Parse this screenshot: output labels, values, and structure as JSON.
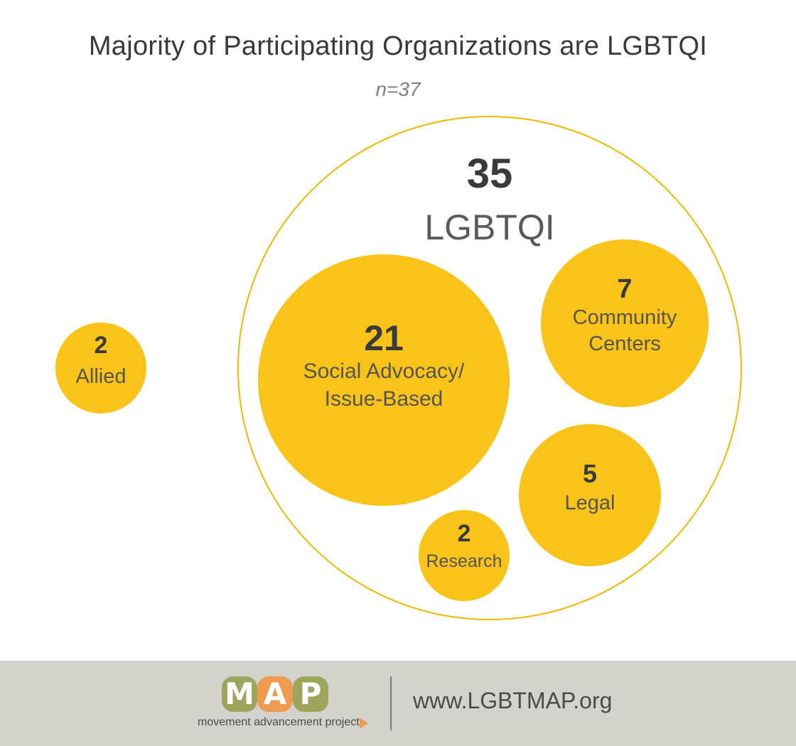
{
  "title": "Majority of Participating Organizations are LGBTQI",
  "subtitle": "n=37",
  "colors": {
    "bubble_fill": "#f9c31a",
    "outer_ring": "#f0b800",
    "value_text": "#3a3a3a",
    "label_text": "#555555",
    "footer_bg": "#d3d3ce",
    "logo_green": "#9da55c",
    "logo_orange": "#ee9a4f"
  },
  "chart_data": {
    "type": "bubble",
    "title": "Majority of Participating Organizations are LGBTQI",
    "subtitle": "n=37",
    "groups": [
      {
        "name": "LGBTQI",
        "value": 35,
        "children": [
          {
            "name": "Social Advocacy/ Issue-Based",
            "label_lines": [
              "Social Advocacy/",
              "Issue-Based"
            ],
            "value": 21
          },
          {
            "name": "Community Centers",
            "label_lines": [
              "Community",
              "Centers"
            ],
            "value": 7
          },
          {
            "name": "Legal",
            "label_lines": [
              "Legal"
            ],
            "value": 5
          },
          {
            "name": "Research",
            "label_lines": [
              "Research"
            ],
            "value": 2
          }
        ]
      },
      {
        "name": "Allied",
        "label_lines": [
          "Allied"
        ],
        "value": 2
      }
    ]
  },
  "footer": {
    "logo_letters": [
      "M",
      "A",
      "P"
    ],
    "logo_tagline": "movement advancement project",
    "url": "www.LGBTMAP.org"
  }
}
